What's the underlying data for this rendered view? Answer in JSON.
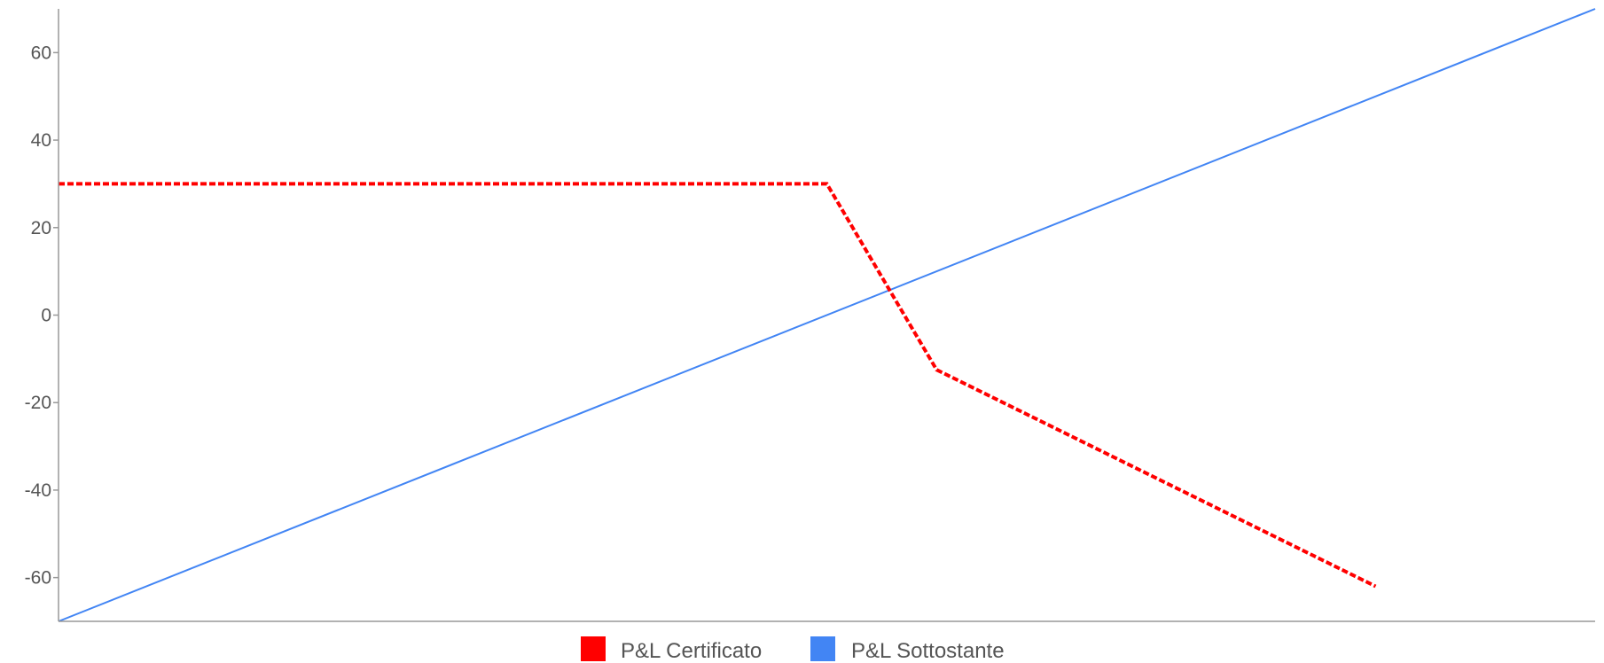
{
  "chart_data": {
    "type": "line",
    "title": "",
    "xlabel": "",
    "ylabel": "",
    "ylim": [
      -70,
      70
    ],
    "yticks": [
      60,
      40,
      20,
      0,
      -20,
      -40,
      -60
    ],
    "ytick_labels": [
      "60",
      "40",
      "20",
      "0",
      "-20",
      "-40",
      "-60"
    ],
    "grid": false,
    "legend_position": "bottom",
    "x_range": [
      -70,
      70
    ],
    "series": [
      {
        "name": "P&L Certificato",
        "color": "#ff0000",
        "style": "dashed",
        "x": [
          -70,
          0,
          10,
          50
        ],
        "y": [
          30,
          30,
          -12.5,
          -62
        ]
      },
      {
        "name": "P&L Sottostante",
        "color": "#4285f4",
        "style": "solid",
        "x": [
          -70,
          70
        ],
        "y": [
          -70,
          70
        ]
      }
    ]
  }
}
